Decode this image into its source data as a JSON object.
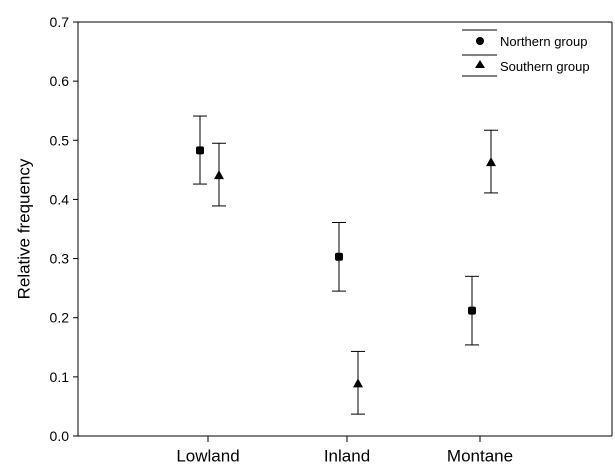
{
  "chart_data": {
    "type": "scatter",
    "title": "",
    "xlabel": "",
    "ylabel": "Relative frequency",
    "categories": [
      "Lowland",
      "Inland",
      "Montane"
    ],
    "ylim": [
      0,
      0.7
    ],
    "yticks": [
      "0.0",
      "0.1",
      "0.2",
      "0.3",
      "0.4",
      "0.5",
      "0.6",
      "0.7"
    ],
    "grid": false,
    "legend": "top-right",
    "series": [
      {
        "name": "Northern group",
        "marker": "circle",
        "values": [
          0.483,
          0.303,
          0.212
        ],
        "err_low": [
          0.426,
          0.245,
          0.154
        ],
        "err_high": [
          0.541,
          0.361,
          0.27
        ]
      },
      {
        "name": "Southern group",
        "marker": "triangle",
        "values": [
          0.441,
          0.089,
          0.463
        ],
        "err_low": [
          0.389,
          0.037,
          0.411
        ],
        "err_high": [
          0.495,
          0.143,
          0.517
        ]
      }
    ]
  }
}
